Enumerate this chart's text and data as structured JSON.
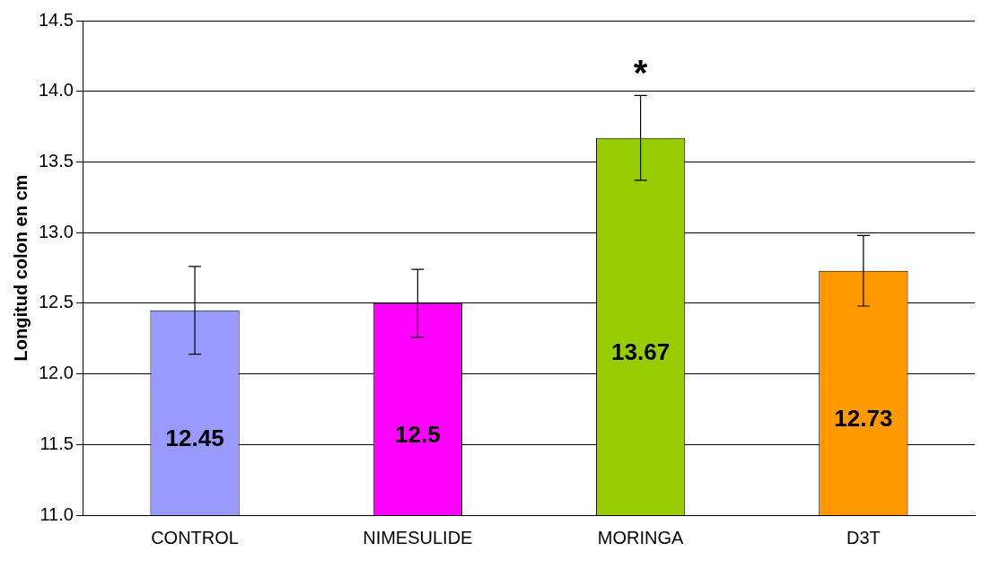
{
  "chart_data": {
    "type": "bar",
    "ylabel": "Longitud colon en cm",
    "categories": [
      "CONTROL",
      "NIMESULIDE",
      "MORINGA",
      "D3T"
    ],
    "values": [
      12.45,
      12.5,
      13.67,
      12.73
    ],
    "colors": [
      "#9999ff",
      "#ff00ff",
      "#99cc00",
      "#ff9900"
    ],
    "errors": [
      0.31,
      0.24,
      0.3,
      0.25
    ],
    "data_labels": true,
    "ylim": [
      11,
      14.5
    ],
    "yticks": [
      {
        "value": 11,
        "label": "11.0"
      },
      11.5,
      {
        "value": 12,
        "label": "12.0"
      },
      12.5,
      {
        "value": 13,
        "label": "13.0"
      },
      13.5,
      {
        "value": 14,
        "label": "14.0"
      },
      14.5
    ],
    "grid": "y",
    "annotations": [
      "*"
    ]
  }
}
